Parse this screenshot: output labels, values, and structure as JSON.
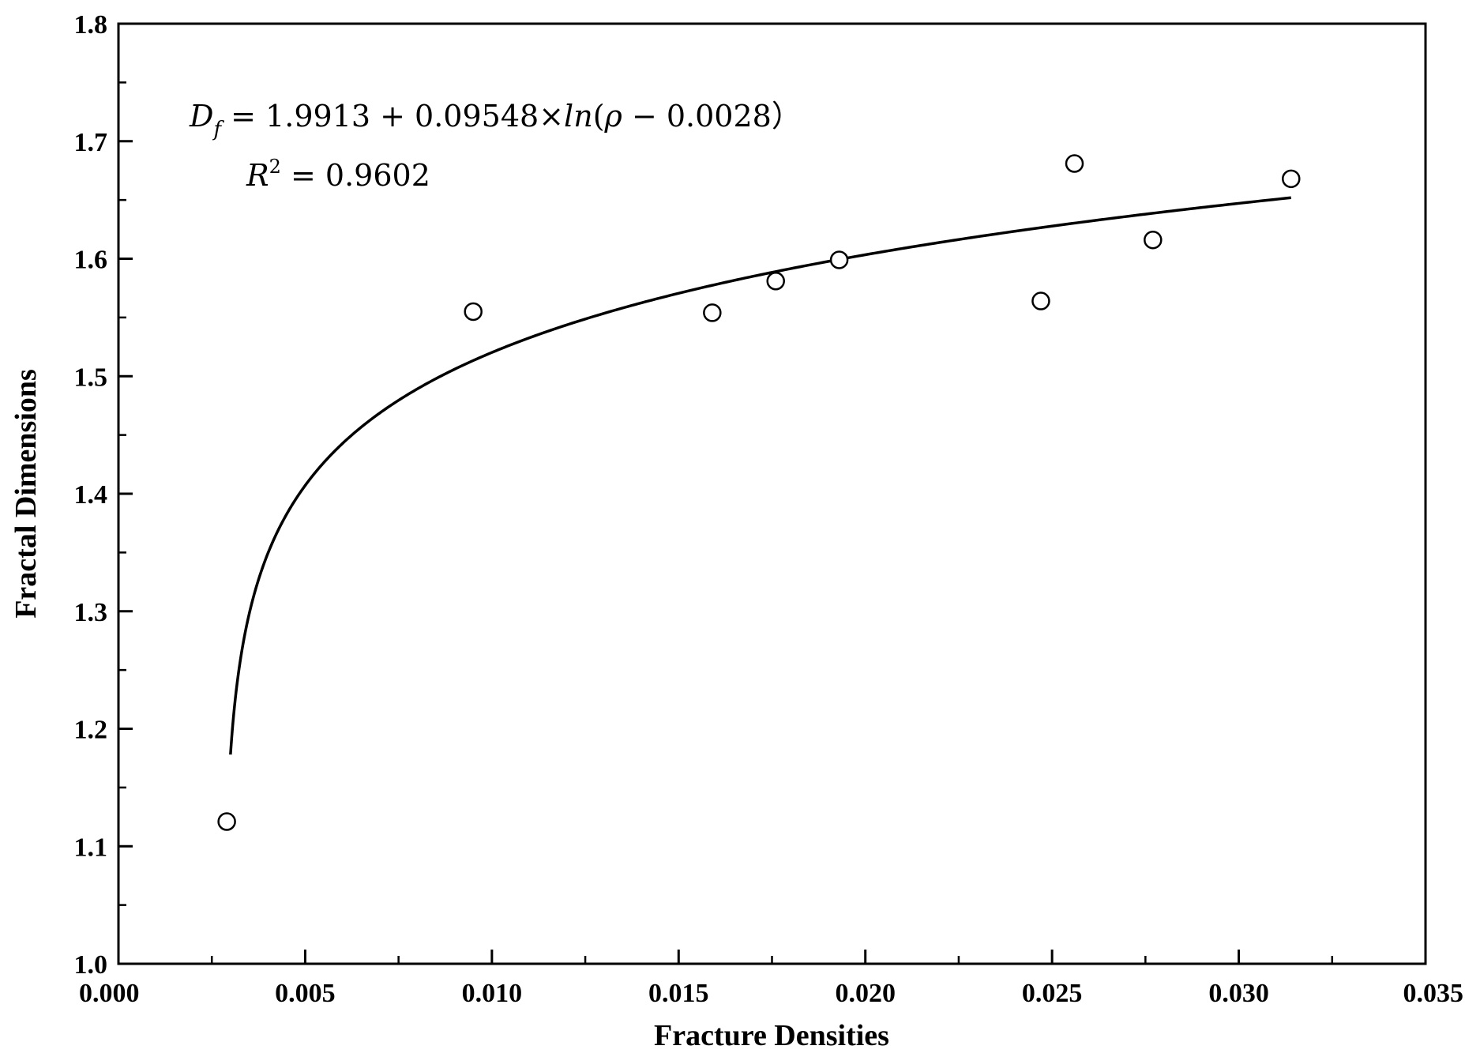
{
  "chart_data": {
    "type": "scatter",
    "title": "",
    "xlabel": "Fracture Densities",
    "ylabel": "Fractal Dimensions",
    "xlim": [
      0.0,
      0.035
    ],
    "ylim": [
      1.0,
      1.8
    ],
    "x_ticks": [
      "0.000",
      "0.005",
      "0.010",
      "0.015",
      "0.020",
      "0.025",
      "0.030",
      "0.035"
    ],
    "y_ticks": [
      "1.0",
      "1.1",
      "1.2",
      "1.3",
      "1.4",
      "1.5",
      "1.6",
      "1.7",
      "1.8"
    ],
    "grid": false,
    "legend": "none",
    "points": [
      {
        "x": 0.0029,
        "y": 1.121
      },
      {
        "x": 0.0095,
        "y": 1.555
      },
      {
        "x": 0.0159,
        "y": 1.554
      },
      {
        "x": 0.0176,
        "y": 1.581
      },
      {
        "x": 0.0193,
        "y": 1.599
      },
      {
        "x": 0.0247,
        "y": 1.564
      },
      {
        "x": 0.0256,
        "y": 1.681
      },
      {
        "x": 0.0277,
        "y": 1.616
      },
      {
        "x": 0.0314,
        "y": 1.668
      }
    ],
    "fit": {
      "intercept": 1.9913,
      "coefficient": 0.09548,
      "shift": 0.0028,
      "x_range": [
        0.003,
        0.0314
      ]
    },
    "annotations": {
      "equation_lhs": "D",
      "equation_sub": "f",
      "equation_rhs": " = 1.9913 + 0.09548×",
      "equation_ln": "ln",
      "equation_paren": "(",
      "equation_rho": "ρ",
      "equation_tail": " − 0.0028",
      "equation_close": "）",
      "r2_symbol": "R",
      "r2_sup": "2",
      "r2_value": " = 0.9602"
    },
    "colors": {
      "axis": "#000000",
      "marker": "#000000",
      "curve": "#000000",
      "background": "#ffffff"
    }
  }
}
